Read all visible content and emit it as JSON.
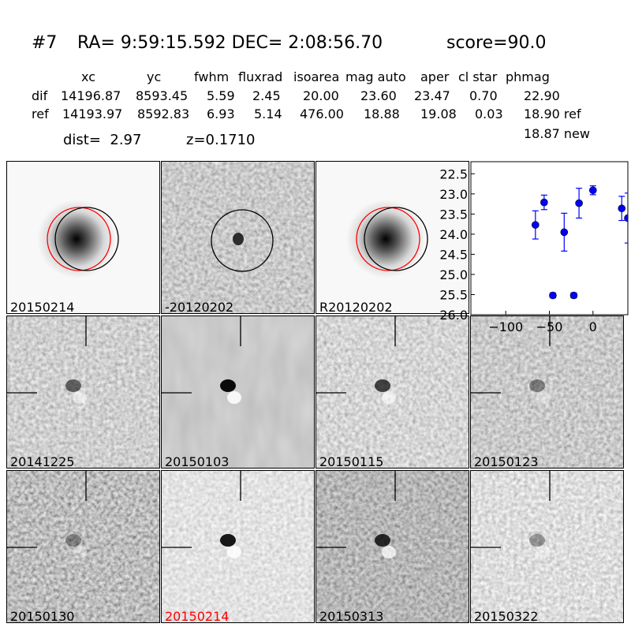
{
  "header": {
    "title_id": "#7",
    "title_ra": "RA= 9:59:15.592 DEC= 2:08:56.70",
    "title_score": "score=90.0",
    "col_xc": "xc",
    "col_yc": "yc",
    "col_fwhm": "fwhm",
    "col_fluxrad": "fluxrad",
    "col_isoarea": "isoarea",
    "col_magauto": "mag auto",
    "col_aper": "aper",
    "col_clstar": "cl star",
    "col_phmag": "phmag",
    "dif": {
      "label": "dif",
      "xc": "14196.87",
      "yc": "8593.45",
      "fwhm": "5.59",
      "fluxrad": "2.45",
      "isoarea": "20.00",
      "magauto": "23.60",
      "aper": "23.47",
      "clstar": "0.70",
      "phmag": "22.90"
    },
    "ref": {
      "label": "ref",
      "xc": "14193.97",
      "yc": "8592.83",
      "fwhm": "6.93",
      "fluxrad": "5.14",
      "isoarea": "476.00",
      "magauto": "18.88",
      "aper": "19.08",
      "clstar": "0.03",
      "phmag": "18.90 ref"
    },
    "new_phmag": "18.87 new",
    "dist": "dist=  2.97",
    "z": "z=0.1710"
  },
  "panels": [
    {
      "label": "20150214",
      "kind": "galaxy",
      "highlight": false
    },
    {
      "label": "-20120202",
      "kind": "diff",
      "highlight": false
    },
    {
      "label": "R20120202",
      "kind": "galaxy",
      "highlight": false
    },
    {
      "label": "20141225",
      "kind": "stamp",
      "highlight": false
    },
    {
      "label": "20150103",
      "kind": "stamp",
      "highlight": false
    },
    {
      "label": "20150115",
      "kind": "stamp",
      "highlight": false
    },
    {
      "label": "20150123",
      "kind": "stamp",
      "highlight": false
    },
    {
      "label": "20150130",
      "kind": "stamp",
      "highlight": false
    },
    {
      "label": "20150214",
      "kind": "stamp",
      "highlight": true
    },
    {
      "label": "20150313",
      "kind": "stamp",
      "highlight": false
    },
    {
      "label": "20150322",
      "kind": "stamp",
      "highlight": false
    }
  ],
  "chart_data": {
    "type": "scatter",
    "xlim": [
      -140,
      40
    ],
    "ylim": [
      26.0,
      22.2
    ],
    "y_inverted": true,
    "x_ticks": [
      -100,
      -50,
      0
    ],
    "y_ticks": [
      22.5,
      23.0,
      23.5,
      24.0,
      24.5,
      25.0,
      25.5,
      26.0
    ],
    "y_tick_labels": [
      "22.5",
      "23.0",
      "23.5",
      "24.0",
      "24.5",
      "25.0",
      "25.5",
      "26.0"
    ],
    "x_tick_labels": [
      "−100",
      "−50",
      "0"
    ],
    "color": "#0000ff",
    "points": [
      {
        "x": -66,
        "y": 23.77,
        "err": 0.35
      },
      {
        "x": -56,
        "y": 23.21,
        "err": 0.18
      },
      {
        "x": -46,
        "y": 25.52,
        "err": 0.06
      },
      {
        "x": -33,
        "y": 23.95,
        "err": 0.47
      },
      {
        "x": -22,
        "y": 25.52,
        "err": 0.06
      },
      {
        "x": -16,
        "y": 23.23,
        "err": 0.37
      },
      {
        "x": 0,
        "y": 22.91,
        "err": 0.11
      },
      {
        "x": 33,
        "y": 23.36,
        "err": 0.3
      },
      {
        "x": 40,
        "y": 23.6,
        "err": 0.62
      }
    ]
  }
}
